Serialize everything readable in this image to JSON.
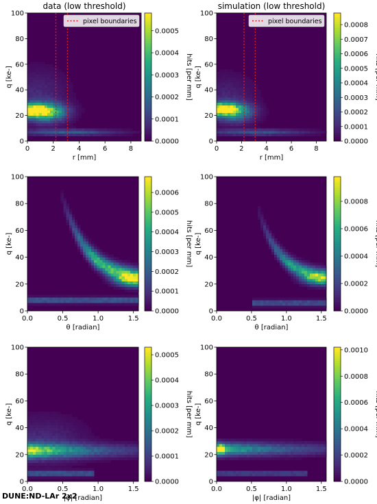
{
  "footer": "DUNE:ND-LAr 2x2",
  "colorscale": [
    "#440154",
    "#472d7b",
    "#3b528b",
    "#2c728e",
    "#21918c",
    "#28ae80",
    "#5ec962",
    "#addc30",
    "#fde725"
  ],
  "chart_data": [
    {
      "type": "heatmap",
      "title": "data (low threshold)",
      "xlabel": "r [mm]",
      "ylabel": "q [ke-]",
      "cbar_label": "hits [per mm]",
      "xlim": [
        0,
        8.8
      ],
      "ylim": [
        0,
        100
      ],
      "xticks": [
        "0",
        "2",
        "4",
        "6",
        "8"
      ],
      "yticks": [
        "0",
        "20",
        "40",
        "60",
        "80",
        "100"
      ],
      "cbar_ticks": [
        "0.0000",
        "0.0001",
        "0.0002",
        "0.0003",
        "0.0004",
        "0.0005"
      ],
      "cbar_max": 0.00058,
      "vlines": [
        2.2,
        3.1
      ],
      "legend": "pixel boundaries",
      "features": [
        {
          "kind": "blob",
          "x": 0.3,
          "y": 24,
          "sx": 1.2,
          "sy": 3.5,
          "v": 1.0
        },
        {
          "kind": "blob",
          "x": 1.6,
          "y": 22,
          "sx": 1.0,
          "sy": 5,
          "v": 0.45
        },
        {
          "kind": "blob",
          "x": 3.2,
          "y": 7,
          "sx": 2.6,
          "sy": 1.6,
          "v": 0.28
        },
        {
          "kind": "blob",
          "x": 0.8,
          "y": 35,
          "sx": 1.5,
          "sy": 14,
          "v": 0.12
        }
      ]
    },
    {
      "type": "heatmap",
      "title": "simulation (low threshold)",
      "xlabel": "r [mm]",
      "ylabel": "q [ke-]",
      "cbar_label": "hits [per mm]",
      "xlim": [
        0,
        8.8
      ],
      "ylim": [
        0,
        100
      ],
      "xticks": [
        "0",
        "2",
        "4",
        "6",
        "8"
      ],
      "yticks": [
        "0",
        "20",
        "40",
        "60",
        "80",
        "100"
      ],
      "cbar_ticks": [
        "0.0000",
        "0.0001",
        "0.0002",
        "0.0003",
        "0.0004",
        "0.0005",
        "0.0006",
        "0.0007",
        "0.0008"
      ],
      "cbar_max": 0.00088,
      "vlines": [
        2.2,
        3.1
      ],
      "legend": "pixel boundaries",
      "features": [
        {
          "kind": "blob",
          "x": 0.3,
          "y": 25,
          "sx": 1.1,
          "sy": 3.2,
          "v": 1.0
        },
        {
          "kind": "blob",
          "x": 1.5,
          "y": 22,
          "sx": 1.0,
          "sy": 5,
          "v": 0.4
        },
        {
          "kind": "blob",
          "x": 3.2,
          "y": 7,
          "sx": 2.8,
          "sy": 1.6,
          "v": 0.25
        },
        {
          "kind": "blob",
          "x": 0.8,
          "y": 34,
          "sx": 1.5,
          "sy": 12,
          "v": 0.1
        }
      ]
    },
    {
      "type": "heatmap",
      "title": "",
      "xlabel": "θ [radian]",
      "ylabel": "q [ke-]",
      "cbar_label": "hits [per mm]",
      "xlim": [
        0,
        1.571
      ],
      "ylim": [
        0,
        100
      ],
      "xticks": [
        "0.0",
        "0.5",
        "1.0",
        "1.5"
      ],
      "yticks": [
        "0",
        "20",
        "40",
        "60",
        "80",
        "100"
      ],
      "cbar_ticks": [
        "0.0000",
        "0.0001",
        "0.0002",
        "0.0003",
        "0.0004",
        "0.0005",
        "0.0006"
      ],
      "cbar_max": 0.00068,
      "features": [
        {
          "kind": "curve",
          "x0": 0.45,
          "amp": 70,
          "decay": 2.8,
          "base": 22,
          "width": 4,
          "v": 0.75
        },
        {
          "kind": "band",
          "y": 8,
          "sy": 1.4,
          "xmin": 0.0,
          "v": 0.32
        },
        {
          "kind": "blob",
          "x": 1.45,
          "y": 23,
          "sx": 0.15,
          "sy": 3,
          "v": 0.45
        }
      ]
    },
    {
      "type": "heatmap",
      "title": "",
      "xlabel": "θ [radian]",
      "ylabel": "q [ke-]",
      "cbar_label": "hits [per mm]",
      "xlim": [
        0,
        1.571
      ],
      "ylim": [
        0,
        100
      ],
      "xticks": [
        "0.0",
        "0.5",
        "1.0",
        "1.5"
      ],
      "yticks": [
        "0",
        "20",
        "40",
        "60",
        "80",
        "100"
      ],
      "cbar_ticks": [
        "0.0000",
        "0.0002",
        "0.0004",
        "0.0006",
        "0.0008"
      ],
      "cbar_max": 0.00098,
      "features": [
        {
          "kind": "curve",
          "x0": 0.55,
          "amp": 60,
          "decay": 3.2,
          "base": 23,
          "width": 3.6,
          "v": 0.6
        },
        {
          "kind": "band",
          "y": 6,
          "sy": 1.4,
          "xmin": 0.5,
          "v": 0.28
        },
        {
          "kind": "blob",
          "x": 1.45,
          "y": 24,
          "sx": 0.15,
          "sy": 3,
          "v": 0.4
        }
      ]
    },
    {
      "type": "heatmap",
      "title": "",
      "xlabel": "|φ| [radian]",
      "ylabel": "q [ke-]",
      "cbar_label": "hits [per mm]",
      "xlim": [
        0,
        1.571
      ],
      "ylim": [
        0,
        100
      ],
      "xticks": [
        "0.0",
        "0.5",
        "1.0",
        "1.5"
      ],
      "yticks": [
        "0",
        "20",
        "40",
        "60",
        "80",
        "100"
      ],
      "cbar_ticks": [
        "0.0000",
        "0.0001",
        "0.0002",
        "0.0003",
        "0.0004",
        "0.0005"
      ],
      "cbar_max": 0.00053,
      "features": [
        {
          "kind": "ridge",
          "y": 23,
          "sy": 3.5,
          "xdecay": 1.2,
          "v": 0.95
        },
        {
          "kind": "band",
          "y": 6,
          "sy": 1.3,
          "xmin": 0.0,
          "xmax": 0.95,
          "v": 0.3
        },
        {
          "kind": "blob",
          "x": 0.2,
          "y": 30,
          "sx": 0.4,
          "sy": 12,
          "v": 0.12
        }
      ]
    },
    {
      "type": "heatmap",
      "title": "",
      "xlabel": "|φ| [radian]",
      "ylabel": "q [ke-]",
      "cbar_label": "hits [per mm]",
      "xlim": [
        0,
        1.571
      ],
      "ylim": [
        0,
        100
      ],
      "xticks": [
        "0.0",
        "0.5",
        "1.0",
        "1.5"
      ],
      "yticks": [
        "0",
        "20",
        "40",
        "60",
        "80",
        "100"
      ],
      "cbar_ticks": [
        "0.0000",
        "0.0002",
        "0.0004",
        "0.0006",
        "0.0008",
        "0.0010"
      ],
      "cbar_max": 0.00102,
      "features": [
        {
          "kind": "ridge",
          "y": 24,
          "sy": 3.2,
          "xdecay": 1.0,
          "v": 0.75
        },
        {
          "kind": "band",
          "y": 6,
          "sy": 1.3,
          "xmin": 0.0,
          "xmax": 1.3,
          "v": 0.22
        },
        {
          "kind": "blob",
          "x": 0.05,
          "y": 24,
          "sx": 0.05,
          "sy": 2.5,
          "v": 0.6
        }
      ]
    }
  ]
}
